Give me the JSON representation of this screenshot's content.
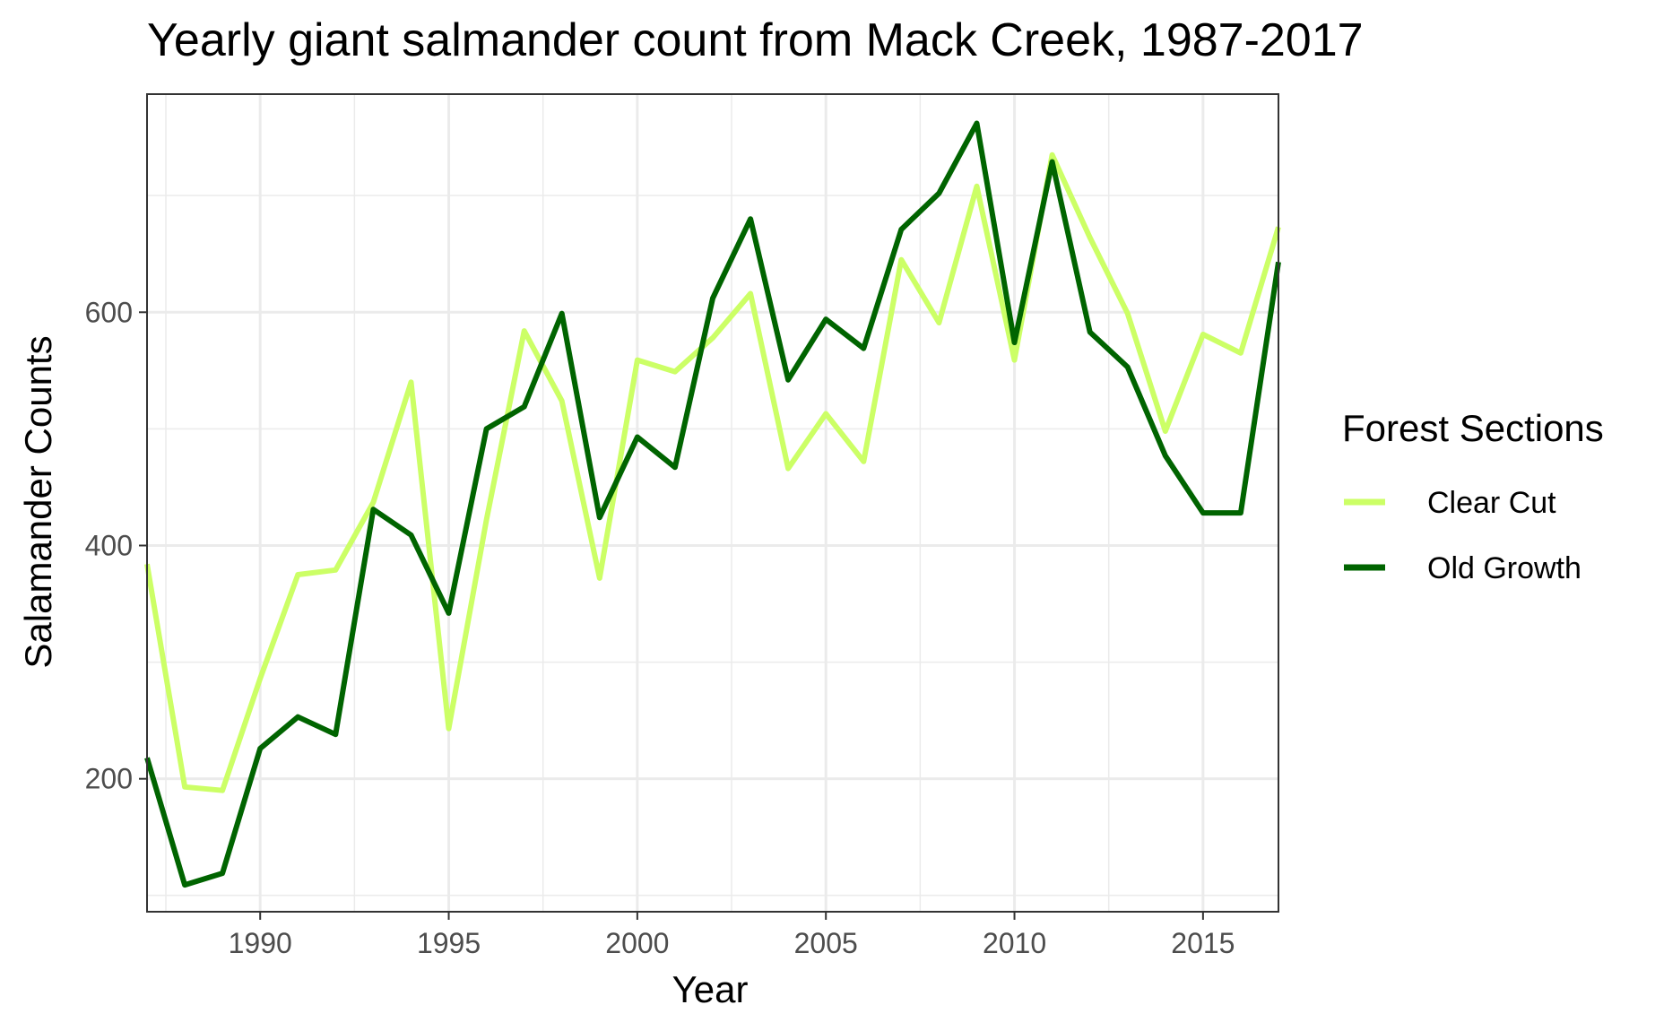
{
  "chart_data": {
    "type": "line",
    "title": "Yearly giant salmander count from Mack Creek, 1987-2017",
    "xlabel": "Year",
    "ylabel": "Salamander Counts",
    "xlim": [
      1987,
      2017
    ],
    "ylim": [
      86,
      787
    ],
    "x_ticks": [
      1990,
      1995,
      2000,
      2005,
      2010,
      2015
    ],
    "y_ticks": [
      200,
      400,
      600
    ],
    "grid": true,
    "legend": {
      "title": "Forest Sections",
      "position": "right"
    },
    "x": [
      1987,
      1988,
      1989,
      1990,
      1991,
      1992,
      1993,
      1994,
      1995,
      1996,
      1997,
      1998,
      1999,
      2000,
      2001,
      2002,
      2003,
      2004,
      2005,
      2006,
      2007,
      2008,
      2009,
      2010,
      2011,
      2012,
      2013,
      2014,
      2015,
      2016,
      2017
    ],
    "series": [
      {
        "name": "Clear Cut",
        "color": "#ccff66",
        "values": [
          384,
          193,
          190,
          286,
          375,
          379,
          437,
          540,
          243,
          422,
          584,
          524,
          372,
          559,
          549,
          578,
          616,
          466,
          513,
          472,
          645,
          591,
          708,
          559,
          735,
          664,
          599,
          498,
          581,
          565,
          673
        ]
      },
      {
        "name": "Old Growth",
        "color": "#006400",
        "values": [
          218,
          109,
          119,
          226,
          253,
          238,
          431,
          409,
          342,
          500,
          519,
          599,
          424,
          493,
          467,
          612,
          680,
          542,
          594,
          569,
          671,
          702,
          762,
          574,
          729,
          583,
          553,
          477,
          428,
          428,
          643
        ]
      }
    ]
  }
}
